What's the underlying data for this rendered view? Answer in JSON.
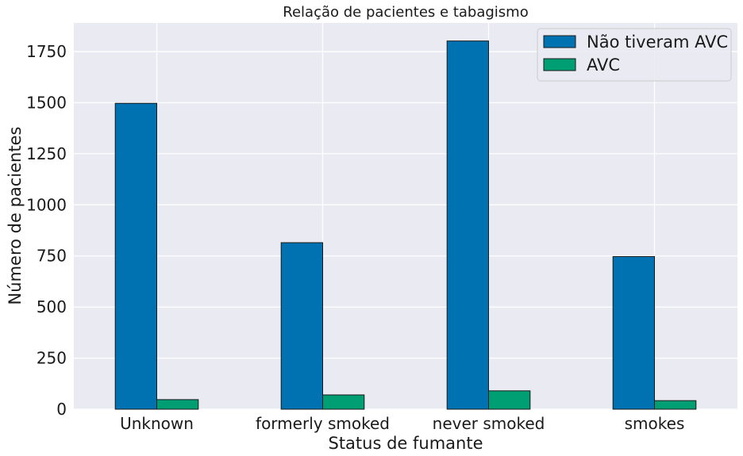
{
  "chart_data": {
    "type": "bar",
    "title": "Relação de pacientes e tabagismo",
    "xlabel": "Status de fumante",
    "ylabel": "Número de pacientes",
    "categories": [
      "Unknown",
      "formerly smoked",
      "never smoked",
      "smokes"
    ],
    "series": [
      {
        "name": "Não tiveram AVC",
        "values": [
          1497,
          815,
          1802,
          747
        ],
        "color": "#0072b2"
      },
      {
        "name": "AVC",
        "values": [
          47,
          70,
          90,
          42
        ],
        "color": "#009e73"
      }
    ],
    "ylim": [
      0,
      1890
    ],
    "yticks": [
      0,
      250,
      500,
      750,
      1000,
      1250,
      1500,
      1750
    ],
    "grid": true,
    "legend": "top-right",
    "background": "#eaeaf2"
  }
}
